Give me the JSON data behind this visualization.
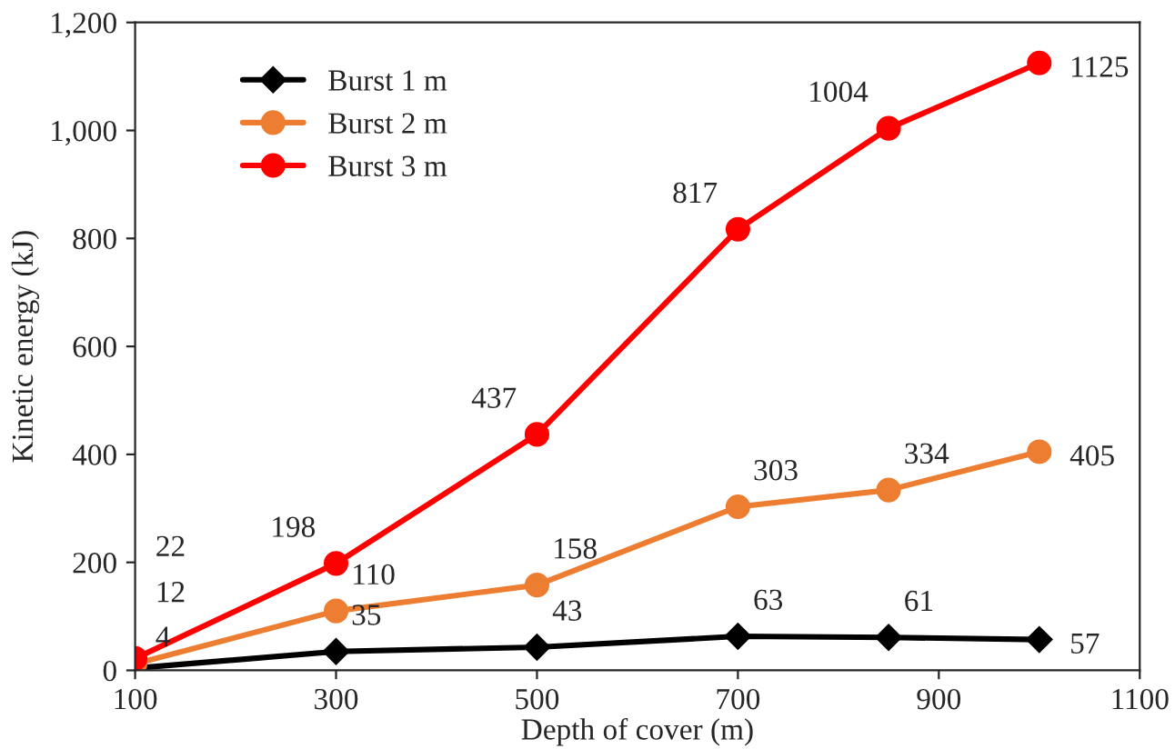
{
  "chart_data": {
    "type": "line",
    "xlabel": "Depth of cover (m)",
    "ylabel": "Kinetic energy (kJ)",
    "x": [
      100,
      300,
      500,
      700,
      850,
      1000
    ],
    "series": [
      {
        "name": "Burst 1 m",
        "color": "#000000",
        "marker": "diamond",
        "values": [
          4,
          35,
          43,
          63,
          61,
          57
        ]
      },
      {
        "name": "Burst 2 m",
        "color": "#ed7d31",
        "marker": "circle",
        "values": [
          12,
          110,
          158,
          303,
          334,
          405
        ]
      },
      {
        "name": "Burst 3 m",
        "color": "#ff0000",
        "marker": "circle",
        "values": [
          22,
          198,
          437,
          817,
          1004,
          1125
        ]
      }
    ],
    "xlim": [
      100,
      1100
    ],
    "xticks": [
      100,
      300,
      500,
      700,
      900,
      1100
    ],
    "ylim": [
      0,
      1200
    ],
    "yticks": [
      0,
      200,
      400,
      600,
      800,
      {
        "value": 1000,
        "label": "1,000"
      },
      {
        "value": 1200,
        "label": "1,200"
      }
    ],
    "data_labels": true,
    "legend": "top left",
    "grid": false,
    "line_style": "solid"
  }
}
